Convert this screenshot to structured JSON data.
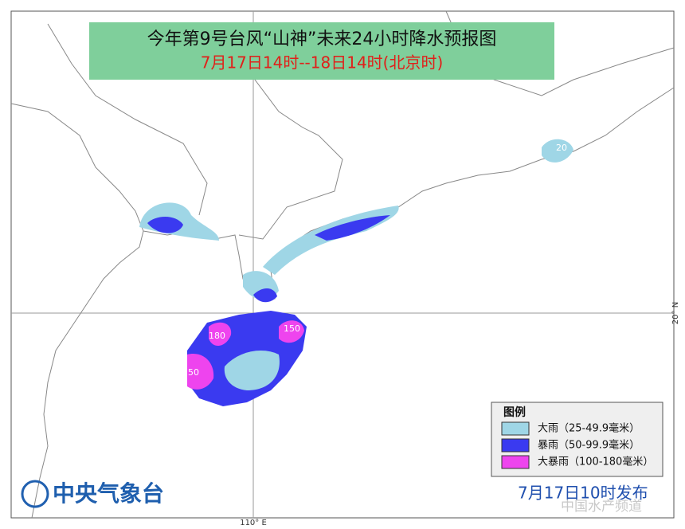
{
  "header": {
    "title": "今年第9号台风“山神”未来24小时降水预报图",
    "subtitle": "7月17日14时--18日14时(北京时)"
  },
  "legend": {
    "title": "图例",
    "items": [
      {
        "label": "大雨（25-49.9毫米）",
        "color": "#9fd6e6"
      },
      {
        "label": "暴雨（50-99.9毫米）",
        "color": "#3a3af0"
      },
      {
        "label": "大暴雨（100-180毫米）",
        "color": "#ee44ee"
      }
    ]
  },
  "map": {
    "contour_labels": [
      "20",
      "180",
      "150",
      "50"
    ],
    "grid_labels": [
      "20° N",
      "110° E"
    ]
  },
  "footer": {
    "agency": "中央气象台",
    "issued": "7月17日10时发布",
    "watermark": "中国水产频道"
  }
}
